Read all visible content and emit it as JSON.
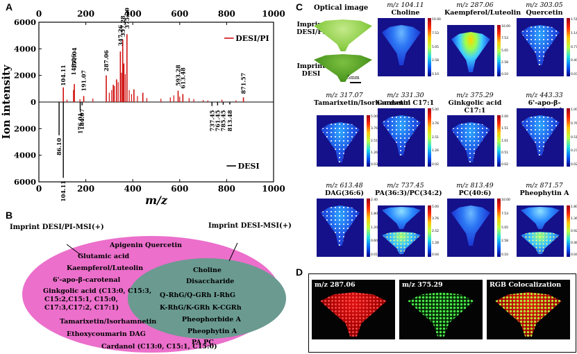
{
  "panel_labels": {
    "a": "A",
    "b": "B",
    "c": "C",
    "d": "D"
  },
  "chart_data": {
    "type": "bar",
    "ylabel": "Ion intensity",
    "xlabel": "m/z",
    "xlim": [
      0,
      1000
    ],
    "ylim": [
      -6000,
      6000
    ],
    "x_ticks": [
      "0",
      "200",
      "400",
      "600",
      "800",
      "1000"
    ],
    "y_ticks": [
      "6000",
      "4000",
      "2000",
      "0",
      "2000",
      "4000",
      "6000"
    ],
    "y_tick_values": [
      6000,
      4000,
      2000,
      0,
      -2000,
      -4000,
      -6000
    ],
    "series": [
      {
        "name": "DESI/PI",
        "color": "#d01010",
        "peaks": [
          [
            104.11,
            1100
          ],
          [
            148.06,
            900
          ],
          [
            151.04,
            1350
          ],
          [
            191.07,
            450
          ],
          [
            287.06,
            2000
          ],
          [
            317,
            1300
          ],
          [
            331,
            1700
          ],
          [
            347.26,
            3800
          ],
          [
            357.28,
            4700
          ],
          [
            362,
            2900
          ],
          [
            375.29,
            5100
          ],
          [
            405,
            950
          ],
          [
            443,
            700
          ],
          [
            593.28,
            850
          ],
          [
            613.48,
            600
          ],
          [
            871.57,
            350
          ]
        ],
        "minor": [
          [
            120,
            180
          ],
          [
            175,
            220
          ],
          [
            230,
            260
          ],
          [
            300,
            700
          ],
          [
            310,
            900
          ],
          [
            322,
            1200
          ],
          [
            338,
            1500
          ],
          [
            352,
            2200
          ],
          [
            368,
            2100
          ],
          [
            385,
            900
          ],
          [
            395,
            600
          ],
          [
            420,
            450
          ],
          [
            460,
            300
          ],
          [
            520,
            250
          ],
          [
            560,
            350
          ],
          [
            575,
            500
          ],
          [
            600,
            400
          ],
          [
            640,
            300
          ],
          [
            660,
            220
          ],
          [
            700,
            150
          ],
          [
            720,
            120
          ],
          [
            780,
            180
          ],
          [
            840,
            120
          ]
        ]
      },
      {
        "name": "DESI",
        "color": "#000000",
        "peaks": [
          [
            86.1,
            -2500
          ],
          [
            104.11,
            -5700
          ],
          [
            176.01,
            -600
          ],
          [
            184.07,
            -250
          ],
          [
            737.45,
            -300
          ],
          [
            761.45,
            -250
          ],
          [
            785.45,
            -200
          ],
          [
            813.48,
            -180
          ]
        ]
      }
    ],
    "labels_positive": [
      "104.11",
      "148.06",
      "151.04",
      "191.07",
      "287.06",
      "347.26",
      "357.28",
      "375.29",
      "593.28",
      "613.48",
      "871.57"
    ],
    "labels_negative": [
      "86.10",
      "104.11",
      "176.01",
      "184.07",
      "737.45",
      "761.45",
      "785.45",
      "813.48"
    ],
    "legend": [
      "DESI/PI",
      "DESI"
    ]
  },
  "venn": {
    "left_title": "Imprint DESI/PI-MSI(+)",
    "right_title": "Imprint DESI-MSI(+)",
    "outer": [
      "Apigenin    Quercetin",
      "Glutamic acid",
      "Kaempferol/Luteolin",
      "6'-apo-β-carotenal",
      "Ginkgolic acid (C13:0, C15:3,",
      "C15:2,C15:1, C15:0,",
      "C17:3,C17:2, C17:1)",
      "Tamarixetin/Isorhamnetin",
      "Ethoxycoumarin    DAG",
      "Cardanol (C13:0, C15:1, C15:0)"
    ],
    "inner": [
      "Choline",
      "Disaccharide",
      "Q-RhG/Q-GRh       I-RhG",
      "K-RhG/K-GRh      K-CGRh",
      "Pheophorbide A",
      "Pheophytin A",
      "PA         PC"
    ]
  },
  "optical": {
    "title": "Optical image",
    "label_top": "Imprint DESI/PI",
    "label_bottom": "Imprint DESI",
    "scale": "5mm"
  },
  "tiles": [
    {
      "mz": "m/z 104.11",
      "name": "Choline",
      "ticks": [
        "10.00",
        "7.53",
        "5.05",
        "2.58",
        "0.10"
      ]
    },
    {
      "mz": "m/z 287.06",
      "name": "Kaempferol/Luteolin",
      "ticks": [
        "10.00",
        "7.53",
        "5.05",
        "2.58",
        "0.10"
      ]
    },
    {
      "mz": "m/z 303.05",
      "name": "Quercetin",
      "ticks": [
        "1.51",
        "1.14",
        "0.77",
        "0.40",
        "0.03"
      ]
    },
    {
      "mz": "m/z 317.07",
      "name": "Tamarixetin/Isorhamnetin",
      "ticks": [
        "5.00",
        "3.76",
        "2.51",
        "1.26",
        "0.03"
      ]
    },
    {
      "mz": "m/z 331.30",
      "name": "Cardanol C17:1",
      "ticks": [
        "5.00",
        "3.76",
        "2.51",
        "1.26",
        "0.02"
      ]
    },
    {
      "mz": "m/z 375.29",
      "name": "Ginkgolic acid C17:1",
      "ticks": [
        "2.00",
        "1.51",
        "1.01",
        "0.51",
        "0.02"
      ]
    },
    {
      "mz": "m/z 443.33",
      "name": "6'-apo-β-carotenal",
      "ticks": [
        "1.00",
        "0.76",
        "0.51",
        "0.27",
        "0.02"
      ]
    },
    {
      "mz": "m/z 613.48",
      "name": "DAG(36:6)",
      "ticks": [
        "2.40",
        "1.80",
        "1.20",
        "0.60",
        "0.01"
      ]
    },
    {
      "mz": "m/z 737.45",
      "name": "PA(36:3)/PC(34:2)",
      "ticks": [
        "5.00",
        "3.76",
        "2.52",
        "1.28",
        "0.04"
      ]
    },
    {
      "mz": "m/z 813.49",
      "name": "PC(40:6)",
      "ticks": [
        "10.00",
        "7.53",
        "5.05",
        "2.58",
        "0.10"
      ]
    },
    {
      "mz": "m/z 871.57",
      "name": "Pheophytin A",
      "ticks": [
        "1.80",
        "1.36",
        "0.92",
        "0.48",
        "0.04"
      ]
    }
  ],
  "rgb": {
    "a": "m/z 287.06",
    "b": "m/z 375.29",
    "c": "RGB Colocalization"
  }
}
